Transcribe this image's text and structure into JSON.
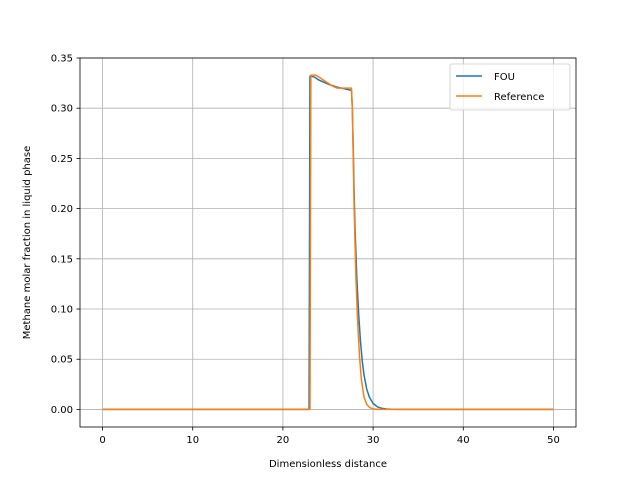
{
  "chart_data": {
    "type": "line",
    "title": "",
    "xlabel": "Dimensionless distance",
    "ylabel": "Methane molar fraction in liquid phase",
    "xlim": [
      -2.5,
      52.5
    ],
    "ylim": [
      -0.0175,
      0.35
    ],
    "xticks": [
      0,
      10,
      20,
      30,
      40,
      50
    ],
    "xtick_labels": [
      "0",
      "10",
      "20",
      "30",
      "40",
      "50"
    ],
    "yticks": [
      0.0,
      0.05,
      0.1,
      0.15,
      0.2,
      0.25,
      0.3,
      0.35
    ],
    "ytick_labels": [
      "0.00",
      "0.05",
      "0.10",
      "0.15",
      "0.20",
      "0.25",
      "0.30",
      "0.35"
    ],
    "grid": true,
    "legend_position": "top-right",
    "series": [
      {
        "name": "FOU",
        "color": "#1f77b4",
        "x": [
          0,
          10,
          20,
          22.7,
          22.8,
          22.9,
          23.0,
          23.5,
          24.0,
          25.0,
          26.0,
          27.0,
          27.5,
          27.6,
          27.7,
          27.8,
          27.9,
          28.0,
          28.2,
          28.4,
          28.6,
          28.8,
          29.0,
          29.3,
          29.6,
          30.0,
          30.5,
          31.0,
          31.5,
          32.0,
          33.0,
          35.0,
          40.0,
          45.0,
          50.0
        ],
        "y": [
          0.0,
          0.0,
          0.0,
          0.0,
          0.0,
          0.0,
          0.332,
          0.331,
          0.328,
          0.324,
          0.321,
          0.319,
          0.318,
          0.318,
          0.3,
          0.26,
          0.215,
          0.18,
          0.13,
          0.095,
          0.068,
          0.048,
          0.034,
          0.02,
          0.012,
          0.006,
          0.0025,
          0.001,
          0.0004,
          0.0002,
          0.0,
          0.0,
          0.0,
          0.0,
          0.0
        ]
      },
      {
        "name": "Reference",
        "color": "#ff7f0e",
        "x": [
          0,
          10,
          20,
          22.9,
          23.0,
          23.1,
          23.3,
          23.6,
          24.0,
          24.5,
          25.0,
          25.5,
          26.0,
          26.5,
          27.0,
          27.5,
          27.6,
          27.7,
          27.8,
          27.9,
          28.0,
          28.1,
          28.3,
          28.5,
          28.7,
          29.0,
          29.3,
          29.6,
          30.0,
          30.5,
          31.0,
          35.0,
          40.0,
          45.0,
          50.0
        ],
        "y": [
          0.0,
          0.0,
          0.0,
          0.0,
          0.0,
          0.333,
          0.333,
          0.333,
          0.331,
          0.328,
          0.325,
          0.322,
          0.32,
          0.32,
          0.32,
          0.32,
          0.32,
          0.3,
          0.25,
          0.2,
          0.165,
          0.13,
          0.085,
          0.052,
          0.03,
          0.012,
          0.005,
          0.002,
          0.0005,
          0.0001,
          0.0,
          0.0,
          0.0,
          0.0,
          0.0
        ]
      }
    ]
  }
}
